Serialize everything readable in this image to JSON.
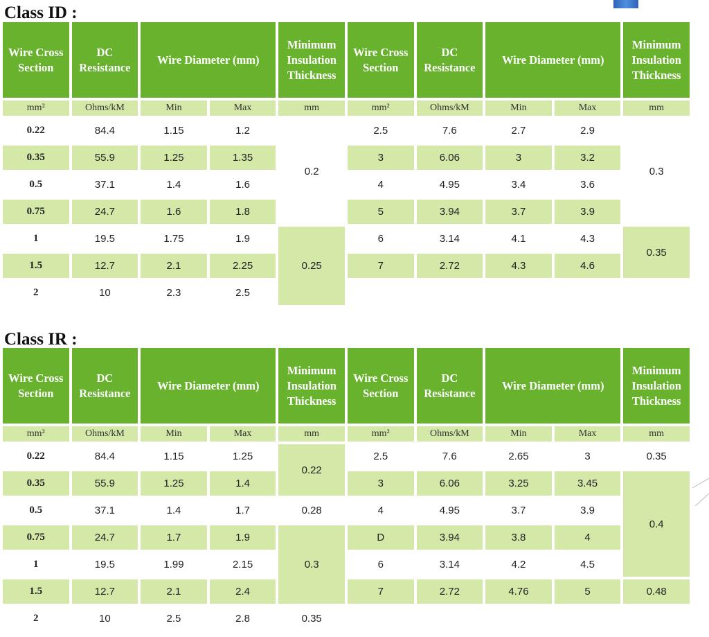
{
  "decor": {
    "accent_color": "#68b22e",
    "light_color": "#d4e8a8"
  },
  "class_id": {
    "title": "Class ID :",
    "headers": {
      "left": {
        "wire": "Wire Cross Section",
        "dc": "DC Resistance",
        "dia": "Wire Diameter (mm)",
        "ins": "Minimum Insulation Thickness"
      },
      "right": {
        "wire": "Wire Cross Section",
        "dc": "DC Resistance",
        "dia": "Wire Diameter (mm)",
        "ins": "Minimum Insulation Thickness"
      }
    },
    "units": {
      "mm2": "mm²",
      "ohms": "Ohms/kM",
      "min": "Min",
      "max": "Max",
      "mm": "mm"
    },
    "rows": [
      {
        "l": [
          "0.22",
          "84.4",
          "1.15",
          "1.2"
        ],
        "r": [
          "2.5",
          "7.6",
          "2.7",
          "2.9"
        ]
      },
      {
        "l": [
          "0.35",
          "55.9",
          "1.25",
          "1.35"
        ],
        "r": [
          "3",
          "6.06",
          "3",
          "3.2"
        ]
      },
      {
        "l": [
          "0.5",
          "37.1",
          "1.4",
          "1.6"
        ],
        "r": [
          "4",
          "4.95",
          "3.4",
          "3.6"
        ]
      },
      {
        "l": [
          "0.75",
          "24.7",
          "1.6",
          "1.8"
        ],
        "r": [
          "5",
          "3.94",
          "3.7",
          "3.9"
        ]
      },
      {
        "l": [
          "1",
          "19.5",
          "1.75",
          "1.9"
        ],
        "r": [
          "6",
          "3.14",
          "4.1",
          "4.3"
        ]
      },
      {
        "l": [
          "1.5",
          "12.7",
          "2.1",
          "2.25"
        ],
        "r": [
          "7",
          "2.72",
          "4.3",
          "4.6"
        ]
      },
      {
        "l": [
          "2",
          "10",
          "2.3",
          "2.5"
        ],
        "r": [
          "",
          "",
          "",
          ""
        ]
      }
    ],
    "ins_left": [
      "0.2",
      "0.25"
    ],
    "ins_right": [
      "0.3",
      "0.35"
    ]
  },
  "class_ir": {
    "title": "Class IR :",
    "headers": {
      "left": {
        "wire": "Wire Cross Section",
        "dc": "DC Resistance",
        "dia": "Wire Diameter (mm)",
        "ins": "Minimum Insulation Thickness"
      },
      "right": {
        "wire": "Wire Cross Section",
        "dc": "DC Resistance",
        "dia": "Wire Diameter (mm)",
        "ins": "Minimum Insulation Thickness"
      }
    },
    "units": {
      "mm2": "mm²",
      "ohms": "Ohms/kM",
      "min": "Min",
      "max": "Max",
      "mm": "mm"
    },
    "rows": [
      {
        "l": [
          "0.22",
          "84.4",
          "1.15",
          "1.25"
        ],
        "r": [
          "2.5",
          "7.6",
          "2.65",
          "3"
        ]
      },
      {
        "l": [
          "0.35",
          "55.9",
          "1.25",
          "1.4"
        ],
        "r": [
          "3",
          "6.06",
          "3.25",
          "3.45"
        ]
      },
      {
        "l": [
          "0.5",
          "37.1",
          "1.4",
          "1.7"
        ],
        "r": [
          "4",
          "4.95",
          "3.7",
          "3.9"
        ]
      },
      {
        "l": [
          "0.75",
          "24.7",
          "1.7",
          "1.9"
        ],
        "r": [
          "D",
          "3.94",
          "3.8",
          "4"
        ]
      },
      {
        "l": [
          "1",
          "19.5",
          "1.99",
          "2.15"
        ],
        "r": [
          "6",
          "3.14",
          "4.2",
          "4.5"
        ]
      },
      {
        "l": [
          "1.5",
          "12.7",
          "2.1",
          "2.4"
        ],
        "r": [
          "7",
          "2.72",
          "4.76",
          "5"
        ]
      },
      {
        "l": [
          "2",
          "10",
          "2.5",
          "2.8"
        ],
        "r": [
          "",
          "",
          "",
          ""
        ]
      }
    ],
    "ins_left": [
      "0.22",
      "0.28",
      "0.3",
      "0.35"
    ],
    "ins_right": [
      "0.35",
      "0.4",
      "0.48"
    ]
  }
}
